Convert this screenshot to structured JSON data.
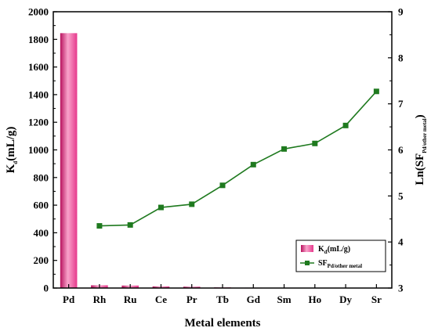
{
  "chart_data": {
    "type": "bar+line",
    "categories": [
      "Pd",
      "Rh",
      "Ru",
      "Ce",
      "Pr",
      "Tb",
      "Gd",
      "Sm",
      "Ho",
      "Dy",
      "Sr"
    ],
    "xlabel": "Metal elements",
    "ylabel_left": {
      "main": "K",
      "sub": "d",
      "rest": "(mL/g)"
    },
    "ylabel_right": {
      "main": "Ln(SF",
      "sub": "Pd/other metal",
      "rest": ")"
    },
    "ylim_left": [
      0,
      2000
    ],
    "ylim_right": [
      3,
      9
    ],
    "left_ticks": [
      0,
      200,
      400,
      600,
      800,
      1000,
      1200,
      1400,
      1600,
      1800,
      2000
    ],
    "right_ticks": [
      3,
      4,
      5,
      6,
      7,
      8,
      9
    ],
    "series": [
      {
        "name": {
          "main": "K",
          "sub": "d",
          "rest": "(mL/g)"
        },
        "kind": "bar",
        "axis": "left",
        "color": "#e6398c",
        "values": [
          1845,
          20,
          18,
          12,
          10,
          5,
          3,
          2,
          2,
          2,
          2
        ]
      },
      {
        "name": {
          "main": "SF",
          "sub": "Pd/other metal",
          "rest": ""
        },
        "kind": "line",
        "axis": "right",
        "color": "#1f7a1f",
        "marker": "square",
        "values": [
          null,
          4.35,
          4.37,
          4.75,
          4.82,
          5.23,
          5.68,
          6.02,
          6.14,
          6.53,
          7.27
        ]
      }
    ],
    "legend_position": "bottom-right",
    "grid": false
  }
}
